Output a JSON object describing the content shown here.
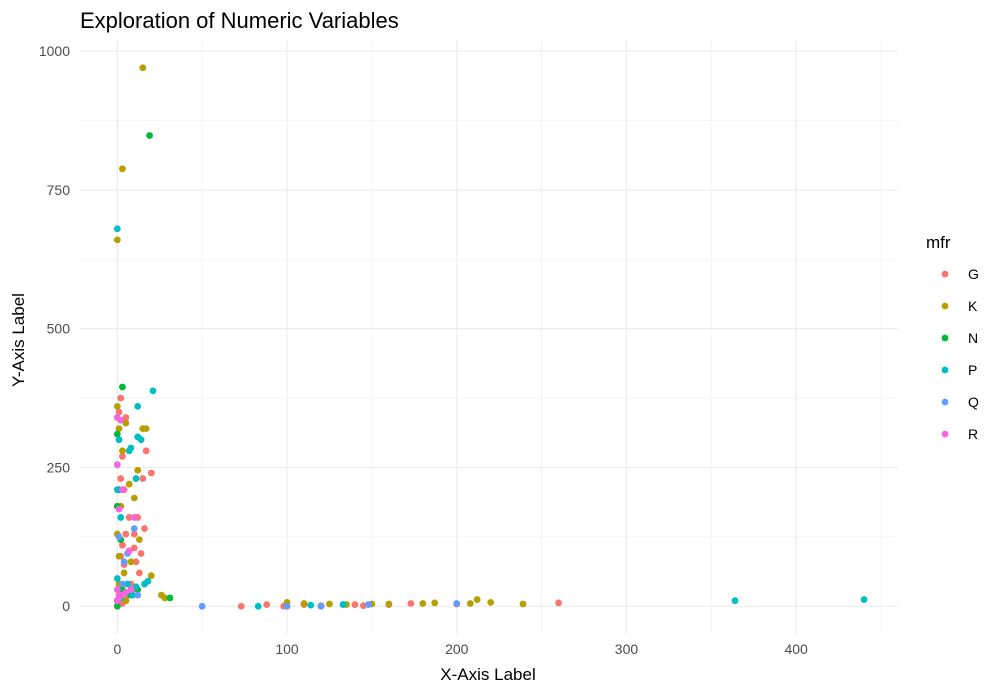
{
  "chart_data": {
    "type": "scatter",
    "title": "Exploration of Numeric Variables",
    "xlabel": "X-Axis Label",
    "ylabel": "Y-Axis Label",
    "xlim": [
      -22,
      460
    ],
    "ylim": [
      -50,
      1020
    ],
    "x_ticks": [
      0,
      100,
      200,
      300,
      400
    ],
    "y_ticks": [
      0,
      250,
      500,
      750,
      1000
    ],
    "x_tick_labels": [
      "0",
      "100",
      "200",
      "300",
      "400"
    ],
    "y_tick_labels": [
      "0",
      "250",
      "500",
      "750",
      "1000"
    ],
    "grid": true,
    "legend": {
      "title": "mfr",
      "position": "right"
    },
    "series": [
      {
        "name": "G",
        "color": "#F8766D",
        "points": [
          [
            2,
            375
          ],
          [
            3,
            270
          ],
          [
            1,
            350
          ],
          [
            5,
            340
          ],
          [
            12,
            160
          ],
          [
            15,
            230
          ],
          [
            17,
            280
          ],
          [
            20,
            240
          ],
          [
            10,
            130
          ],
          [
            5,
            130
          ],
          [
            2,
            90
          ],
          [
            7,
            160
          ],
          [
            4,
            75
          ],
          [
            8,
            40
          ],
          [
            3,
            110
          ],
          [
            11,
            80
          ],
          [
            14,
            95
          ],
          [
            1,
            20
          ],
          [
            6,
            20
          ],
          [
            9,
            30
          ],
          [
            13,
            60
          ],
          [
            4,
            210
          ],
          [
            2,
            230
          ],
          [
            10,
            105
          ],
          [
            16,
            140
          ],
          [
            3,
            5
          ],
          [
            5,
            10
          ],
          [
            73,
            0
          ],
          [
            88,
            3
          ],
          [
            98,
            0
          ],
          [
            110,
            3
          ],
          [
            120,
            1
          ],
          [
            140,
            3
          ],
          [
            145,
            1
          ],
          [
            160,
            3
          ],
          [
            173,
            5
          ],
          [
            200,
            4
          ],
          [
            260,
            6
          ]
        ]
      },
      {
        "name": "K",
        "color": "#B79F00",
        "points": [
          [
            15,
            970
          ],
          [
            3,
            788
          ],
          [
            0,
            660
          ],
          [
            1,
            320
          ],
          [
            3,
            280
          ],
          [
            5,
            330
          ],
          [
            15,
            320
          ],
          [
            17,
            320
          ],
          [
            12,
            245
          ],
          [
            10,
            195
          ],
          [
            7,
            220
          ],
          [
            2,
            180
          ],
          [
            0,
            130
          ],
          [
            1,
            90
          ],
          [
            4,
            60
          ],
          [
            8,
            80
          ],
          [
            13,
            120
          ],
          [
            20,
            55
          ],
          [
            26,
            20
          ],
          [
            28,
            15
          ],
          [
            1,
            40
          ],
          [
            0,
            360
          ],
          [
            5,
            10
          ],
          [
            100,
            7
          ],
          [
            110,
            5
          ],
          [
            125,
            4
          ],
          [
            135,
            3
          ],
          [
            150,
            4
          ],
          [
            160,
            4
          ],
          [
            180,
            5
          ],
          [
            187,
            6
          ],
          [
            208,
            5
          ],
          [
            212,
            12
          ],
          [
            220,
            7
          ],
          [
            239,
            4
          ]
        ]
      },
      {
        "name": "N",
        "color": "#00BA38",
        "points": [
          [
            19,
            848
          ],
          [
            3,
            395
          ],
          [
            0,
            310
          ],
          [
            1,
            210
          ],
          [
            0,
            180
          ],
          [
            2,
            120
          ],
          [
            3,
            30
          ],
          [
            5,
            25
          ],
          [
            0,
            10
          ],
          [
            31,
            15
          ],
          [
            0,
            0
          ],
          [
            8,
            20
          ],
          [
            12,
            30
          ]
        ]
      },
      {
        "name": "P",
        "color": "#00BFC4",
        "points": [
          [
            0,
            680
          ],
          [
            21,
            388
          ],
          [
            12,
            360
          ],
          [
            1,
            300
          ],
          [
            14,
            300
          ],
          [
            8,
            285
          ],
          [
            11,
            230
          ],
          [
            12,
            305
          ],
          [
            7,
            280
          ],
          [
            0,
            210
          ],
          [
            2,
            160
          ],
          [
            0,
            50
          ],
          [
            6,
            40
          ],
          [
            11,
            35
          ],
          [
            16,
            40
          ],
          [
            18,
            45
          ],
          [
            9,
            20
          ],
          [
            2,
            15
          ],
          [
            83,
            0
          ],
          [
            114,
            2
          ],
          [
            133,
            3
          ],
          [
            364,
            10
          ],
          [
            440,
            12
          ]
        ]
      },
      {
        "name": "Q",
        "color": "#619CFF",
        "points": [
          [
            1,
            125
          ],
          [
            10,
            140
          ],
          [
            4,
            80
          ],
          [
            6,
            95
          ],
          [
            3,
            40
          ],
          [
            12,
            20
          ],
          [
            50,
            0
          ],
          [
            100,
            0
          ],
          [
            120,
            0
          ],
          [
            148,
            3
          ],
          [
            200,
            5
          ]
        ]
      },
      {
        "name": "R",
        "color": "#F564E3",
        "points": [
          [
            0,
            340
          ],
          [
            2,
            335
          ],
          [
            0,
            255
          ],
          [
            3,
            210
          ],
          [
            1,
            175
          ],
          [
            7,
            100
          ],
          [
            10,
            160
          ],
          [
            0,
            30
          ],
          [
            2,
            20
          ],
          [
            5,
            25
          ],
          [
            1,
            15
          ],
          [
            8,
            30
          ],
          [
            0,
            10
          ]
        ]
      }
    ]
  }
}
